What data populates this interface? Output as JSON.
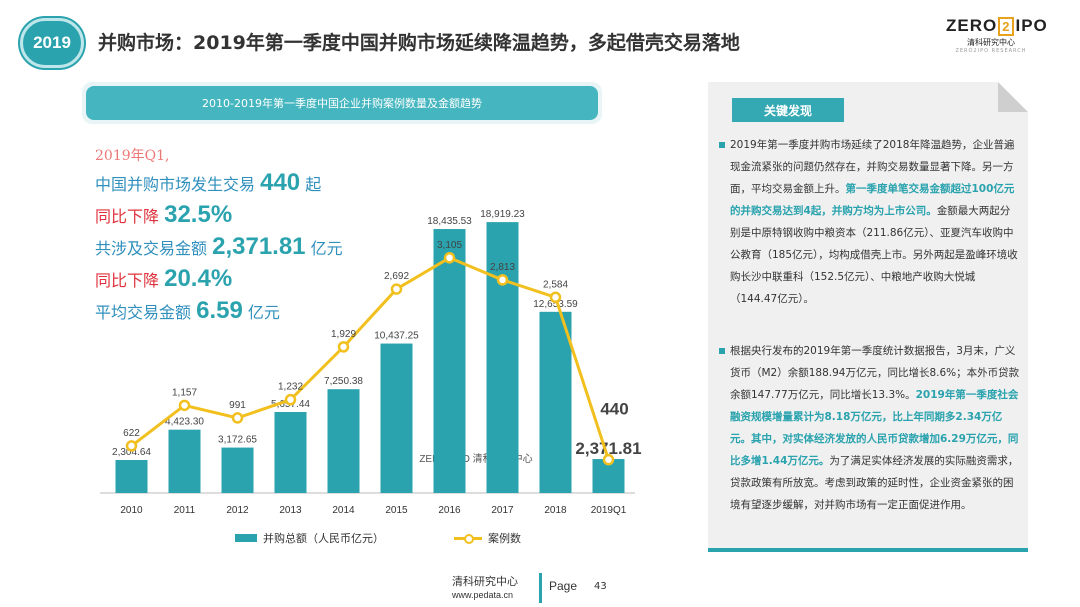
{
  "header": {
    "year_badge": "2019",
    "title": "并购市场：2019年第一季度中国并购市场延续降温趋势，多起借壳交易落地",
    "logo": {
      "part1": "ZERO",
      "part2": "2",
      "part3": "IPO",
      "sub": "清科研究中心",
      "sub2": "ZERO2IPO RESEARCH"
    }
  },
  "chart_banner": "2010-2019年第一季度中国企业并购案例数量及金额趋势",
  "summary": {
    "period": "2019年Q1,",
    "line1_label": "中国并购市场发生交易",
    "line1_value": "440",
    "line1_unit": "起",
    "line2_label": "同比下降",
    "line2_value": "32.5%",
    "line3_label": "共涉及交易金额",
    "line3_value": "2,371.81",
    "line3_unit": "亿元",
    "line4_label": "同比下降",
    "line4_value": "20.4%",
    "line5_label": "平均交易金额",
    "line5_value": "6.59",
    "line5_unit": "亿元"
  },
  "chart_data": {
    "type": "bar+line",
    "categories": [
      "2010",
      "2011",
      "2012",
      "2013",
      "2014",
      "2015",
      "2016",
      "2017",
      "2018",
      "2019Q1"
    ],
    "series": [
      {
        "name": "并购总额（人民币亿元）",
        "type": "bar",
        "values": [
          2304.64,
          4423.3,
          3172.65,
          5657.44,
          7250.38,
          10437.25,
          18435.53,
          18919.23,
          12653.59,
          2371.81
        ],
        "labels": [
          "2,304.64",
          "4,423.30",
          "3,172.65",
          "5,657.44",
          "7,250.38",
          "10,437.25",
          "18,435.53",
          "18,919.23",
          "12,653.59",
          "2,371.81"
        ],
        "color": "#2aa3ae"
      },
      {
        "name": "案例数",
        "type": "line",
        "values": [
          622,
          1157,
          991,
          1232,
          1929,
          2692,
          3105,
          2813,
          2584,
          440
        ],
        "labels": [
          "622",
          "1,157",
          "991",
          "1,232",
          "1,929",
          "2,692",
          "3,105",
          "2,813",
          "2,584",
          "440"
        ],
        "color": "#f2c01e"
      }
    ],
    "bar_ylim": [
      0,
      22000
    ],
    "line_ylim": [
      0,
      4000
    ],
    "watermark": "ZERO2IPO 清科研究中心"
  },
  "legend": {
    "bar": "并购总额（人民币亿元）",
    "line": "案例数"
  },
  "panel": {
    "title": "关键发现",
    "p1_a": "2019年第一季度并购市场延续了2018年降温趋势，企业普遍现金流紧张的问题仍然存在，并购交易数量显著下降。另一方面，平均交易金额上升。",
    "p1_hl": "第一季度单笔交易金额超过100亿元的并购交易达到4起，并购方均为上市公司。",
    "p1_b": "金额最大两起分别是中原特钢收购中粮资本（211.86亿元）、亚夏汽车收购中公教育（185亿元），均构成借壳上市。另外两起是盈峰环境收购长沙中联重科（152.5亿元）、中粮地产收购大悦城（144.47亿元）。",
    "p2_a": "根据央行发布的2019年第一季度统计数据报告，3月末，广义货币（M2）余额188.94万亿元，同比增长8.6%；本外币贷款余额147.77万亿元，同比增长13.3%。",
    "p2_hl": "2019年第一季度社会融资规模增量累计为8.18万亿元，比上年同期多2.34万亿元。其中，对实体经济发放的人民币贷款增加6.29万亿元，同比多增1.44万亿元。",
    "p2_b": "为了满足实体经济发展的实际融资需求，贷款政策有所放宽。考虑到政策的延时性，企业资金紧张的困境有望逐步缓解，对并购市场有一定正面促进作用。"
  },
  "footer": {
    "org": "清科研究中心",
    "url": "www.pedata.cn",
    "page_label": "Page",
    "page_number": "43"
  }
}
